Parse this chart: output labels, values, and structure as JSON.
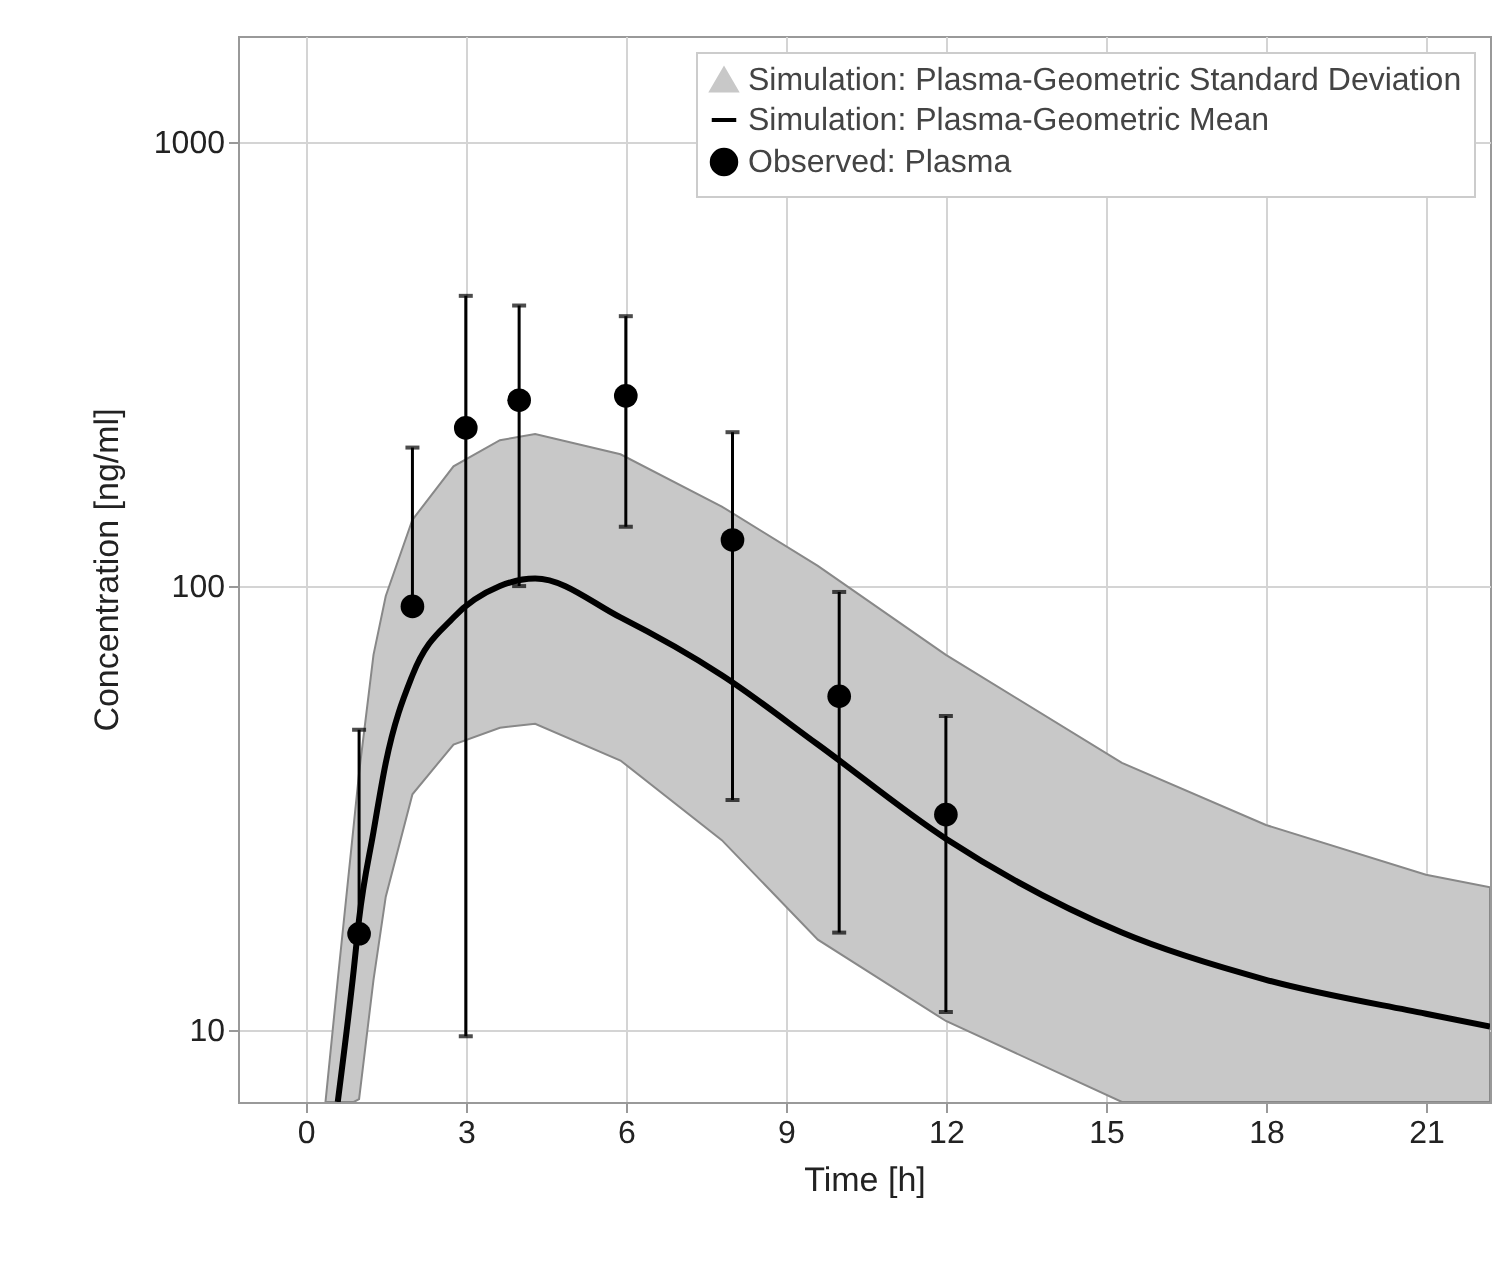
{
  "chart_data": {
    "type": "line",
    "xlabel": "Time [h]",
    "ylabel": "Concentration [ng/ml]",
    "log": "y",
    "grid": true,
    "legend": "top right",
    "xlim": [
      -1.27,
      22.2
    ],
    "xticks": [
      0,
      3,
      6,
      9,
      12,
      15,
      18,
      21
    ],
    "ylim": [
      6.9,
      1730
    ],
    "yticks": [
      10,
      100,
      {
        "value": 1000,
        "label": "1000"
      }
    ],
    "series": [
      {
        "name": "Simulation: Plasma-Geometric Standard Deviation",
        "type": "area",
        "color": "#c8c8c8"
      },
      {
        "name": "Simulation: Plasma-Geometric Mean",
        "color": "#000000",
        "x": [
          0.37,
          0.6,
          0.9,
          1.0,
          1.27,
          1.5,
          2,
          2.77,
          3.64,
          4.3,
          5.9,
          7.8,
          9.6,
          12,
          15.3,
          18,
          21,
          22.2
        ],
        "values": [
          null,
          6.9,
          13.7,
          17.8,
          28,
          40,
          63,
          85,
          100,
          104,
          85,
          63,
          44,
          27,
          16.6,
          13,
          10.9,
          10.2
        ],
        "lower": [
          6.9,
          6.9,
          6.9,
          7,
          13,
          20,
          34,
          44,
          48,
          49,
          40.5,
          26.8,
          16,
          10.5,
          6.9,
          6.9,
          6.9,
          6.9
        ],
        "upper": [
          6.9,
          13,
          29,
          38,
          70,
          95,
          141,
          186,
          213,
          220,
          198,
          151,
          111,
          70,
          40,
          29,
          22.4,
          21
        ]
      },
      {
        "name": "Observed: Plasma",
        "type": "scatter",
        "color": "#000000",
        "marker": "circle",
        "x": [
          1,
          2,
          3,
          4,
          6,
          8,
          10,
          12
        ],
        "values": [
          16.5,
          90,
          227,
          262,
          268,
          127,
          56.5,
          30.6
        ],
        "errors": [
          [
            16.5,
            47.5
          ],
          [
            90,
            205
          ],
          [
            9.7,
            450
          ],
          [
            100,
            428
          ],
          [
            136,
            405
          ],
          [
            33,
            222
          ],
          [
            16.6,
            97
          ],
          [
            11,
            51
          ]
        ]
      }
    ]
  }
}
